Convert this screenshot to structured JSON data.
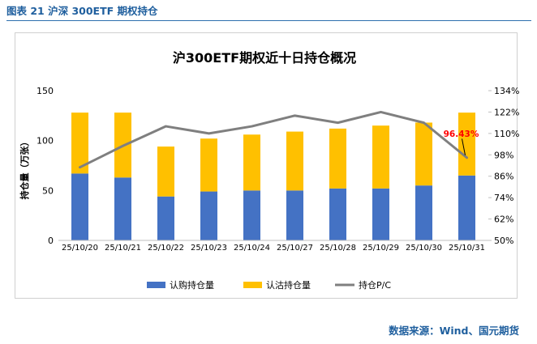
{
  "figure_caption": "图表 21  沪深 300ETF 期权持仓",
  "source": "数据来源：Wind、国元期货",
  "colors": {
    "call": "#4472c4",
    "put": "#ffc000",
    "pc": "#7f7f7f",
    "label": "#ff0000",
    "caption": "#1f5f9e"
  },
  "chart_data": {
    "type": "bar",
    "title": "沪300ETF期权近十日持仓概况",
    "ylabel": "持仓量（万张）",
    "ylim": [
      0,
      150
    ],
    "yticks": [
      0,
      50,
      100,
      150
    ],
    "y2lim": [
      0.5,
      1.34
    ],
    "y2ticks": [
      "50%",
      "62%",
      "74%",
      "86%",
      "98%",
      "110%",
      "122%",
      "134%"
    ],
    "categories": [
      "25/10/20",
      "25/10/21",
      "25/10/22",
      "25/10/23",
      "25/10/24",
      "25/10/27",
      "25/10/28",
      "25/10/29",
      "25/10/30",
      "25/10/31"
    ],
    "series": [
      {
        "name": "认购持仓量",
        "type": "bar",
        "axis": "left",
        "values": [
          67,
          63,
          44,
          49,
          50,
          50,
          52,
          52,
          55,
          65
        ]
      },
      {
        "name": "认沽持仓量",
        "type": "bar",
        "axis": "left",
        "values": [
          61,
          65,
          50,
          53,
          56,
          59,
          60,
          63,
          63,
          63
        ]
      },
      {
        "name": "持仓P/C",
        "type": "line",
        "axis": "right",
        "values": [
          0.91,
          1.03,
          1.14,
          1.1,
          1.14,
          1.2,
          1.16,
          1.22,
          1.16,
          0.9643
        ]
      }
    ],
    "annotation": {
      "text": "96.43%",
      "category": "25/10/31"
    },
    "legend_position": "bottom"
  }
}
